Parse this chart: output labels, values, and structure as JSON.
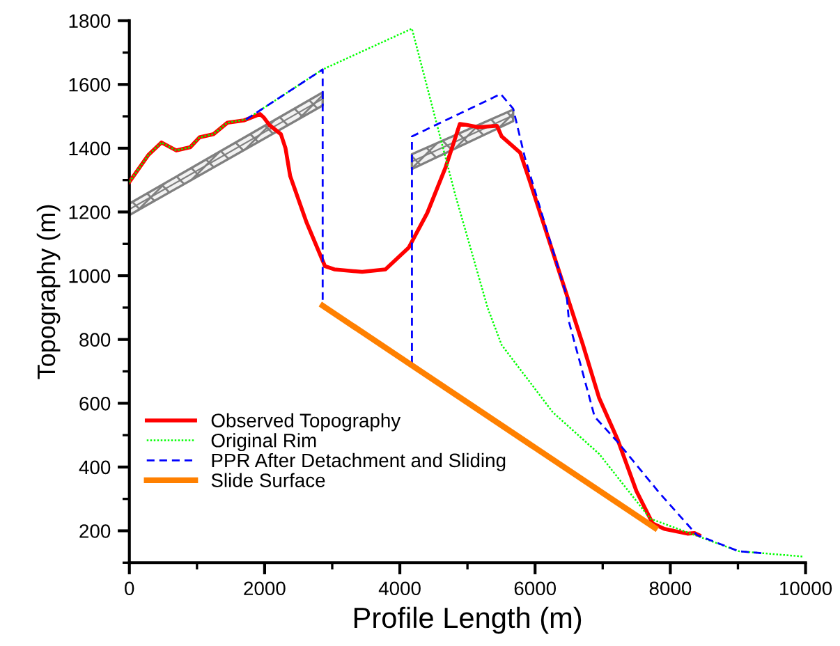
{
  "chart_data": {
    "type": "line",
    "xlabel": "Profile Length (m)",
    "ylabel": "Topography (m)",
    "xlim": [
      0,
      10000
    ],
    "ylim": [
      100,
      1800
    ],
    "xticks": [
      0,
      2000,
      4000,
      6000,
      8000,
      10000
    ],
    "yticks": [
      200,
      400,
      600,
      800,
      1000,
      1200,
      1400,
      1600,
      1800
    ],
    "grid": false,
    "legend": "bottom left",
    "marker": "none",
    "series": [
      {
        "type": "line",
        "color": "#808080",
        "x": [
          0,
          2859
        ],
        "values": [
          1208,
          1555
        ],
        "lower": [
          1190,
          1534
        ],
        "upper": [
          1226,
          1575
        ]
      },
      {
        "type": "line",
        "color": "#808080",
        "x": [
          4179,
          5676
        ],
        "values": [
          1358,
          1503
        ],
        "lower": [
          1335,
          1485
        ],
        "upper": [
          1381,
          1521
        ]
      },
      {
        "name": "Observed Topography",
        "color": "#ff0000",
        "line_style": "solid",
        "x": [
          0,
          282,
          474,
          694,
          900,
          1037,
          1244,
          1450,
          1691,
          1932,
          1985,
          2069,
          2241,
          2309,
          2378,
          2619,
          2893,
          3031,
          3443,
          3787,
          4131,
          4406,
          4680,
          4887,
          4990,
          5161,
          5437,
          5505,
          5780,
          5918,
          6708,
          6948,
          7223,
          7498,
          7739,
          7911,
          8254,
          8357,
          8426
        ],
        "values": [
          1294,
          1379,
          1418,
          1393,
          1403,
          1434,
          1444,
          1480,
          1487,
          1507,
          1497,
          1473,
          1444,
          1400,
          1313,
          1168,
          1030,
          1020,
          1012,
          1020,
          1088,
          1197,
          1342,
          1476,
          1473,
          1466,
          1470,
          1437,
          1386,
          1299,
          783,
          616,
          485,
          325,
          223,
          206,
          191,
          193,
          186
        ]
      },
      {
        "name": "Original Rim",
        "color": "#00ff00",
        "line_style": "dotted",
        "x": [
          0,
          282,
          474,
          694,
          900,
          1037,
          1244,
          1450,
          1725,
          2859,
          4179,
          4818,
          5299,
          5505,
          6261,
          6948,
          7704,
          9010,
          9973
        ],
        "values": [
          1294,
          1379,
          1418,
          1393,
          1403,
          1434,
          1444,
          1480,
          1490,
          1647,
          1775,
          1255,
          899,
          783,
          572,
          441,
          238,
          136,
          119
        ]
      },
      {
        "name": "PPR After Detachment and Sliding",
        "color": "#0000ff",
        "line_style": "dashed",
        "x": [
          1725,
          2859,
          2859,
          3500,
          4179,
          4179,
          5491,
          5676,
          5849,
          6468,
          6502,
          6880,
          7223,
          7842,
          8392,
          9010,
          9388
        ],
        "values": [
          1490,
          1647,
          906,
          null,
          725,
          1437,
          1570,
          1524,
          1371,
          936,
          855,
          558,
          478,
          318,
          187,
          136,
          129
        ]
      },
      {
        "name": "Slide Surface",
        "color": "#ff8000",
        "line_style": "solid",
        "x": [
          2859,
          7773
        ],
        "values": [
          906,
          209
        ]
      }
    ]
  }
}
